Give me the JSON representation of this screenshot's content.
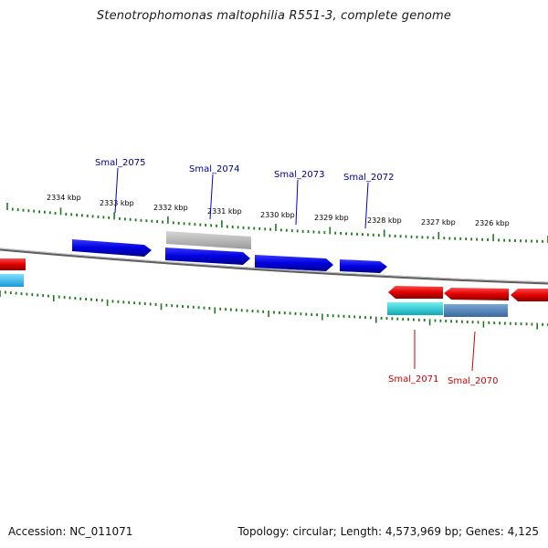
{
  "title": "Stenotrophomonas maltophilia R551-3, complete genome",
  "footer": {
    "accession": "Accession: NC_011071",
    "topology": "Topology: circular; Length: 4,573,969 bp; Genes: 4,125"
  },
  "colors": {
    "background": "#ffffff",
    "backbone": "#7a7a7a",
    "tick": "#1f7a1f",
    "forward_gene": "#0000dd",
    "reverse_gene": "#e00000",
    "label_forward": "#00008b",
    "label_reverse": "#cc0000",
    "gray_feature": "#b0b0b0",
    "cyan_feature": "#1bc8c8",
    "steelblue_feature": "#4a7fb5"
  },
  "scale": {
    "unit": "kbp",
    "labels": [
      "2334 kbp",
      "2333 kbp",
      "2332 kbp",
      "2331 kbp",
      "2330 kbp",
      "2329 kbp",
      "2328 kbp",
      "2327 kbp",
      "2326 kbp"
    ]
  },
  "genes": {
    "forward": [
      "Smal_2075",
      "Smal_2074",
      "Smal_2073",
      "Smal_2072"
    ],
    "reverse": [
      "Smal_2071",
      "Smal_2070"
    ]
  }
}
